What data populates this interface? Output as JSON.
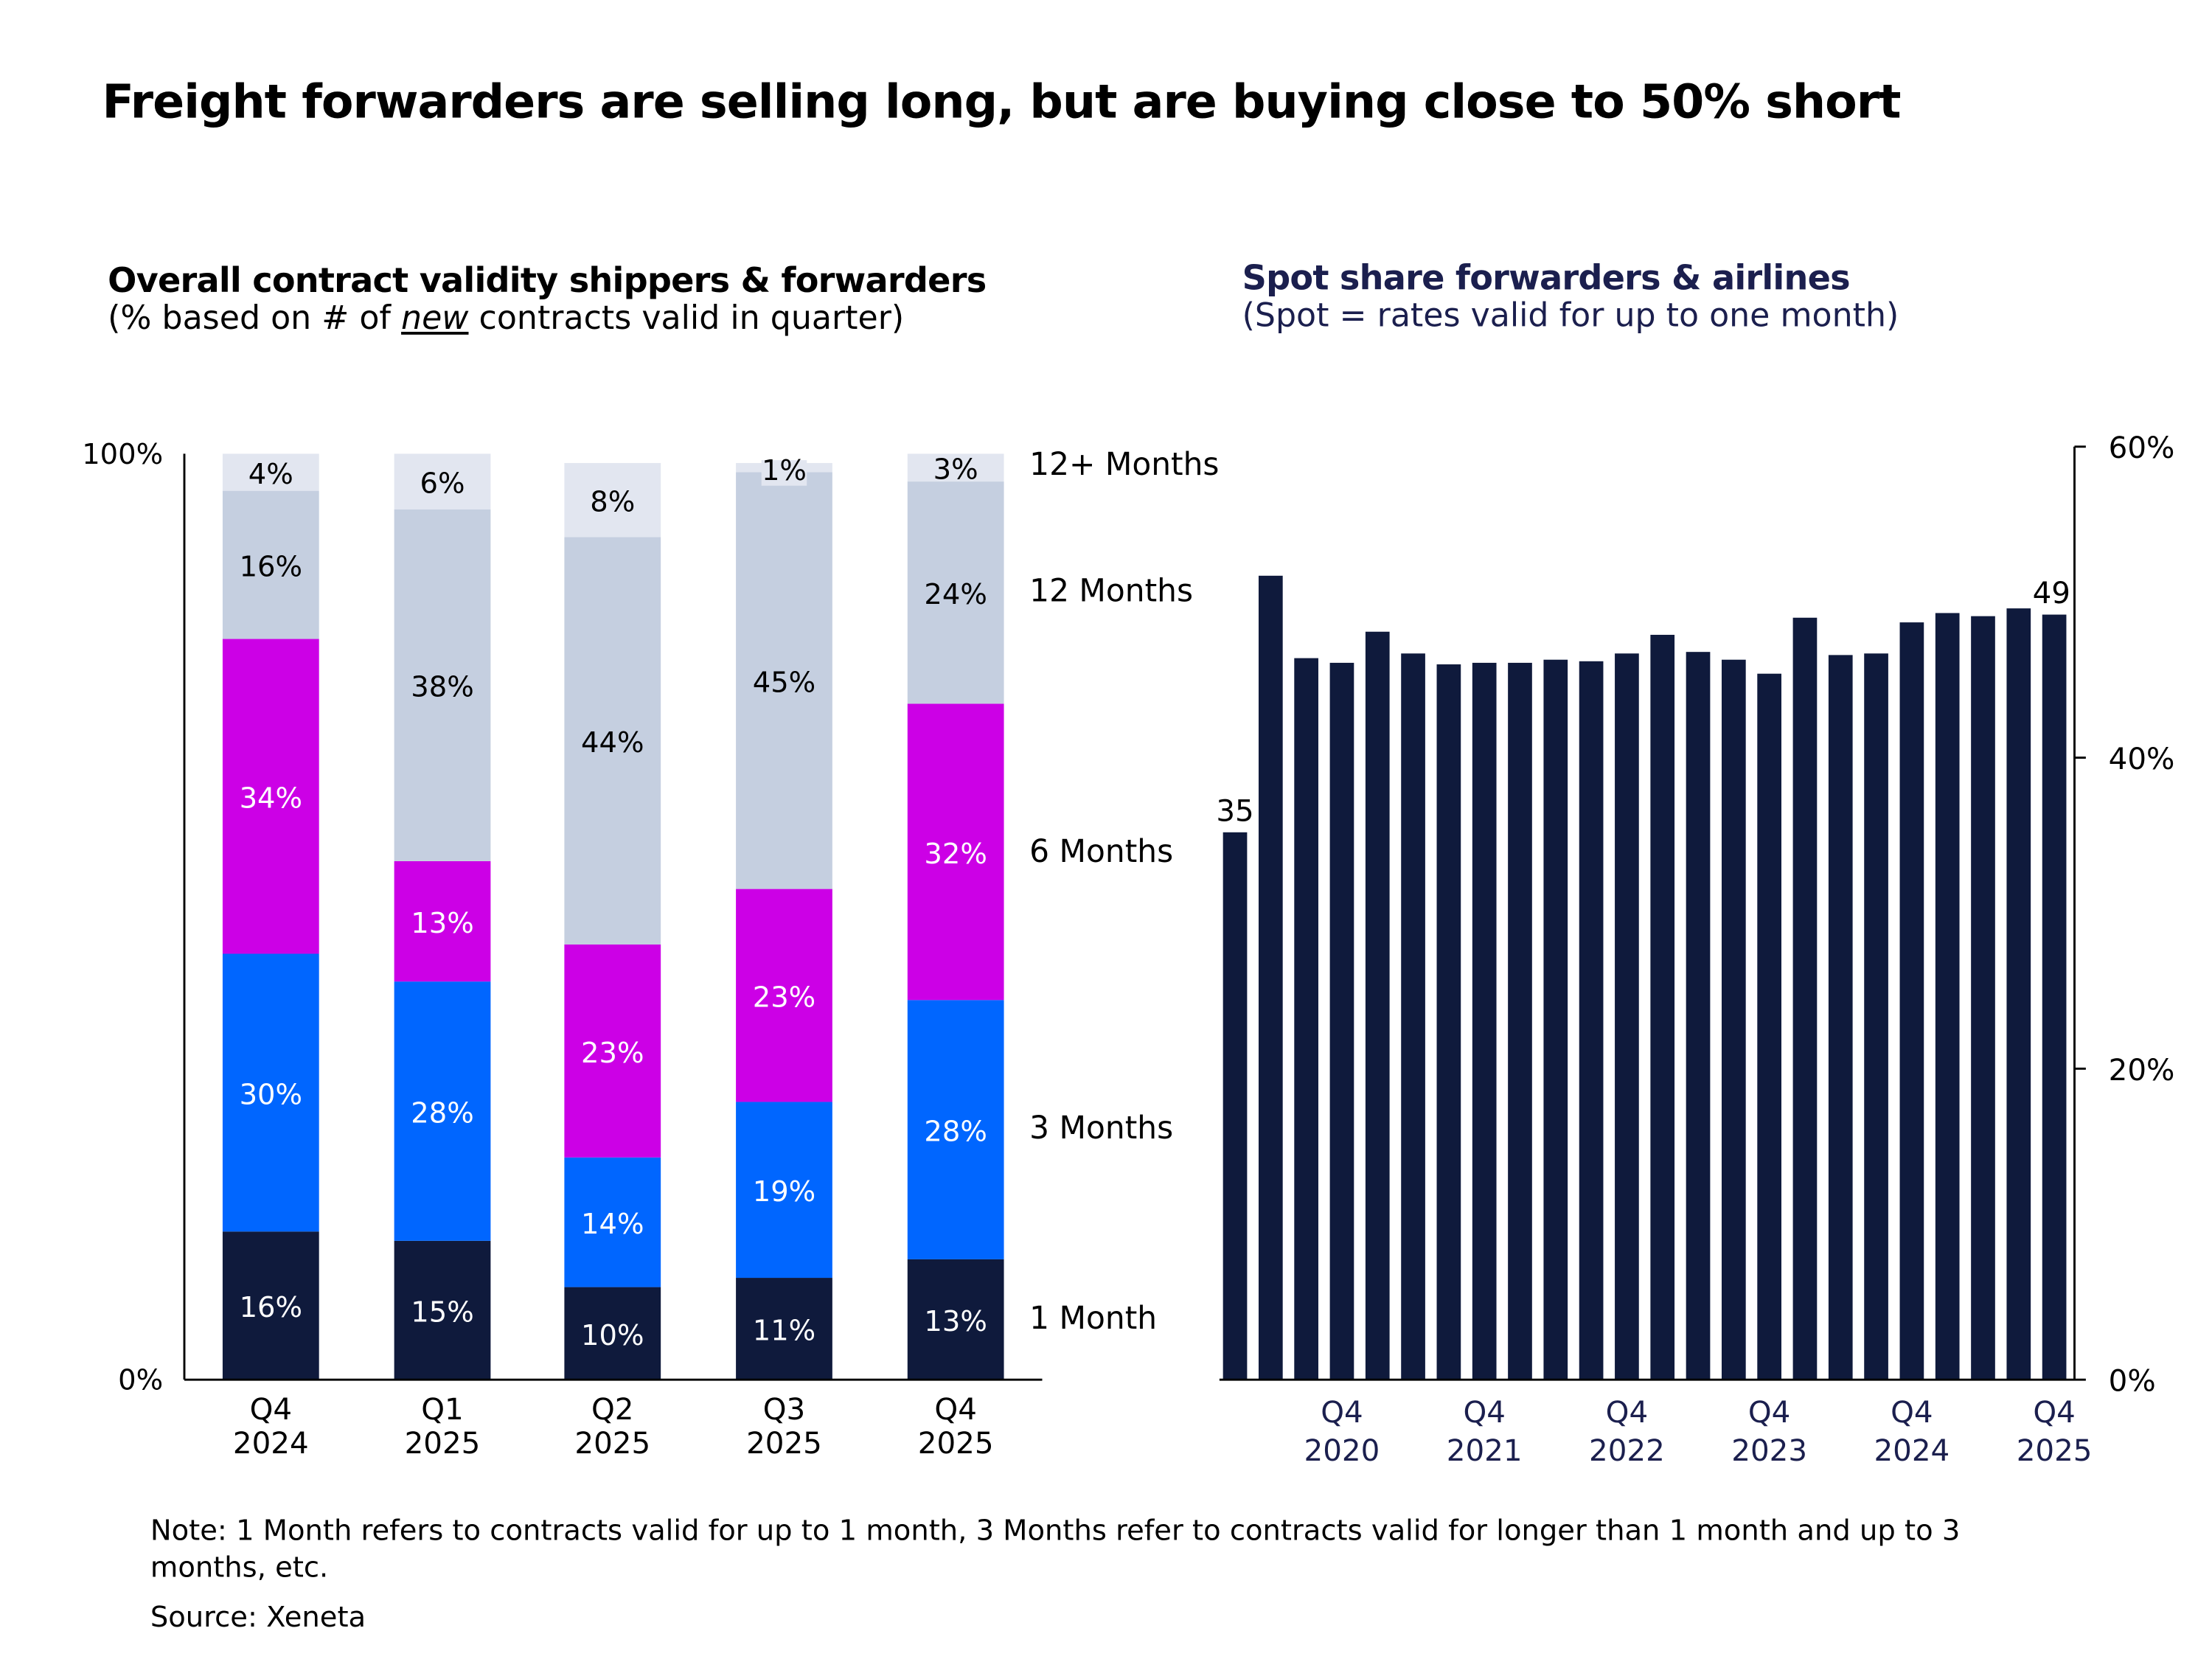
{
  "title": "Freight forwarders are selling long, but are buying close to 50% short",
  "note": "Note: 1 Month refers to contracts valid for up to 1 month, 3 Months refer to contracts valid for longer than 1 month and up to 3 months, etc.",
  "source": "Source: Xeneta",
  "left_subtitle": {
    "bold": "Overall contract validity shippers & forwarders",
    "pre": "(% based on # of ",
    "em": "new",
    "post": " contracts valid in quarter)"
  },
  "right_subtitle": {
    "bold": "Spot share forwarders & airlines",
    "normal": "(Spot = rates valid for up to one month)"
  },
  "chart_data": [
    {
      "type": "bar",
      "stacked": true,
      "ylim": [
        0,
        100
      ],
      "yticks": [
        "0%",
        "100%"
      ],
      "categories": [
        [
          "Q4",
          "2024"
        ],
        [
          "Q1",
          "2025"
        ],
        [
          "Q2",
          "2025"
        ],
        [
          "Q3",
          "2025"
        ],
        [
          "Q4",
          "2025"
        ]
      ],
      "series": [
        {
          "name": "1 Month",
          "color": "#0f1a3c",
          "label_color": "#ffffff",
          "values": [
            16,
            15,
            10,
            11,
            13
          ]
        },
        {
          "name": "3 Months",
          "color": "#0066ff",
          "label_color": "#ffffff",
          "values": [
            30,
            28,
            14,
            19,
            28
          ]
        },
        {
          "name": "6 Months",
          "color": "#cc00e6",
          "label_color": "#ffffff",
          "values": [
            34,
            13,
            23,
            23,
            32
          ]
        },
        {
          "name": "12 Months",
          "color": "#c5cfe0",
          "label_color": "#000000",
          "values": [
            16,
            38,
            44,
            45,
            24
          ]
        },
        {
          "name": "12+ Months",
          "color": "#e2e6f0",
          "label_color": "#000000",
          "values": [
            4,
            6,
            8,
            1,
            3
          ]
        }
      ],
      "legend": "right"
    },
    {
      "type": "bar",
      "ylim": [
        0,
        60
      ],
      "yticks": [
        "0%",
        "20%",
        "40%",
        "60%"
      ],
      "y_axis_side": "right",
      "color": "#0f1a3c",
      "x": [
        "Q1 2020",
        "Q2 2020",
        "Q3 2020",
        "Q4 2020",
        "Q1 2021",
        "Q2 2021",
        "Q3 2021",
        "Q4 2021",
        "Q1 2022",
        "Q2 2022",
        "Q3 2022",
        "Q4 2022",
        "Q1 2023",
        "Q2 2023",
        "Q3 2023",
        "Q4 2023",
        "Q1 2024",
        "Q2 2024",
        "Q3 2024",
        "Q4 2024",
        "Q1 2025",
        "Q2 2025",
        "Q3 2025",
        "Q4 2025"
      ],
      "values": [
        35.2,
        51.7,
        46.4,
        46.1,
        48.1,
        46.7,
        46.0,
        46.1,
        46.1,
        46.3,
        46.2,
        46.7,
        47.9,
        46.8,
        46.3,
        45.4,
        49.0,
        46.6,
        46.7,
        48.7,
        49.3,
        49.1,
        49.6,
        49.2
      ],
      "data_labels": {
        "0": "35",
        "23": "49"
      },
      "xtick_labels": [
        {
          "index": 3,
          "lines": [
            "Q4",
            "2020"
          ]
        },
        {
          "index": 7,
          "lines": [
            "Q4",
            "2021"
          ]
        },
        {
          "index": 11,
          "lines": [
            "Q4",
            "2022"
          ]
        },
        {
          "index": 15,
          "lines": [
            "Q4",
            "2023"
          ]
        },
        {
          "index": 19,
          "lines": [
            "Q4",
            "2024"
          ]
        },
        {
          "index": 23,
          "lines": [
            "Q4",
            "2025"
          ]
        }
      ]
    }
  ]
}
